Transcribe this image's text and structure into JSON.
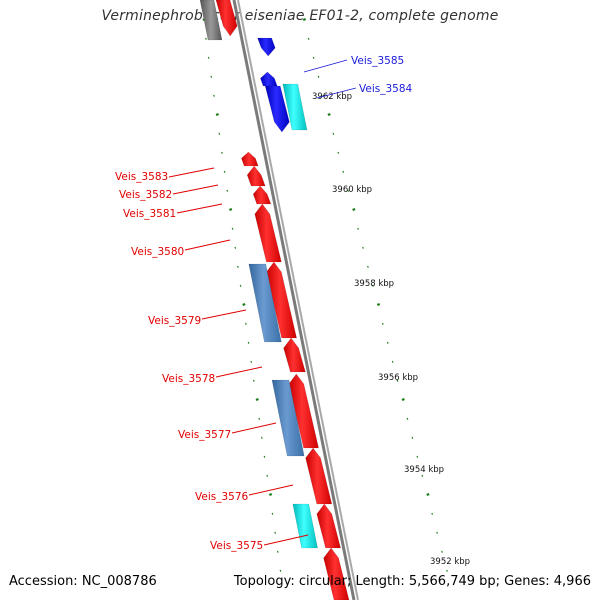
{
  "title": "Verminephrobacter eiseniae EF01-2, complete genome",
  "accession_text": "Accession: NC_008786",
  "topology_text": "Topology: circular; Length: 5,566,749 bp; Genes: 4,966",
  "colors": {
    "forward_gene": "#ff1010",
    "reverse_gene_blue": "#1010e6",
    "cyan_gene": "#20e8e8",
    "steelblue_gene": "#4f86c0",
    "backbone": "#8a8a8a",
    "tick": "#1a7d1a",
    "label_red": "#e00000",
    "label_blue": "#1a1ad8"
  },
  "scale_labels": [
    "3962 kbp",
    "3960 kbp",
    "3958 kbp",
    "3956 kbp",
    "3954 kbp",
    "3952 kbp"
  ],
  "gene_labels": [
    {
      "text": "Veis_3585",
      "side": "right"
    },
    {
      "text": "Veis_3584",
      "side": "right"
    },
    {
      "text": "Veis_3583",
      "side": "left"
    },
    {
      "text": "Veis_3582",
      "side": "left"
    },
    {
      "text": "Veis_3581",
      "side": "left"
    },
    {
      "text": "Veis_3580",
      "side": "left"
    },
    {
      "text": "Veis_3579",
      "side": "left"
    },
    {
      "text": "Veis_3578",
      "side": "left"
    },
    {
      "text": "Veis_3577",
      "side": "left"
    },
    {
      "text": "Veis_3576",
      "side": "left"
    },
    {
      "text": "Veis_3575",
      "side": "left"
    }
  ]
}
